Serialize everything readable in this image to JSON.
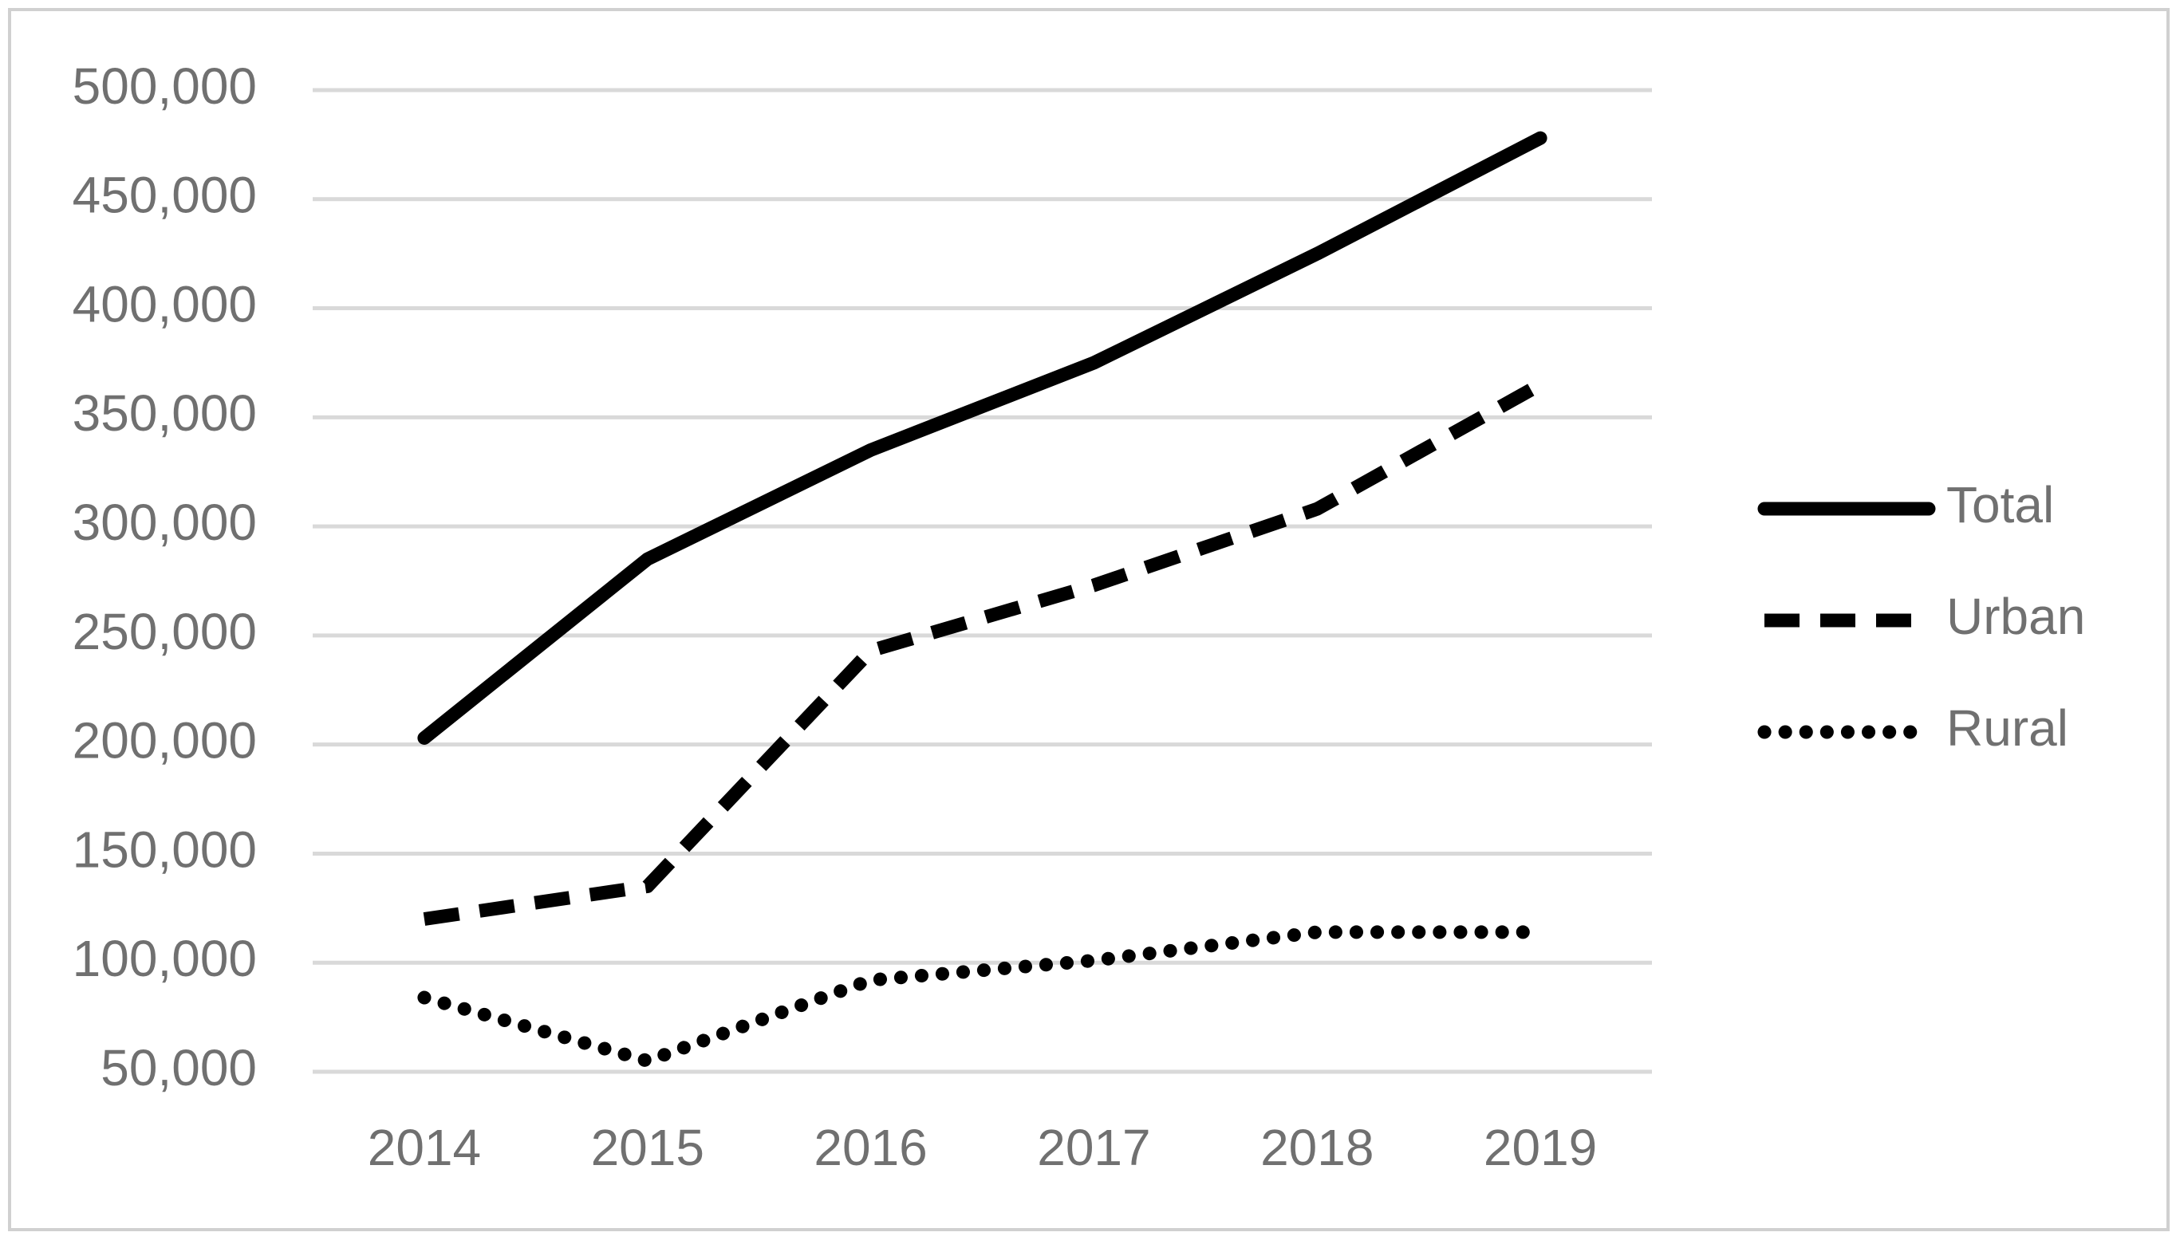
{
  "chart_data": {
    "type": "line",
    "categories": [
      "2014",
      "2015",
      "2016",
      "2017",
      "2018",
      "2019"
    ],
    "series": [
      {
        "name": "Total",
        "color": "#000000",
        "style": "solid",
        "values": [
          203000,
          285000,
          335000,
          375000,
          425000,
          478000
        ]
      },
      {
        "name": "Urban",
        "color": "#000000",
        "style": "dashed",
        "values": [
          120000,
          135000,
          243000,
          273000,
          308000,
          365000
        ]
      },
      {
        "name": "Rural",
        "color": "#000000",
        "style": "dotted",
        "values": [
          84000,
          55000,
          92000,
          101000,
          114000,
          114000
        ]
      }
    ],
    "ylim": [
      50000,
      500000
    ],
    "yticks": [
      {
        "value": 50000,
        "label": "50,000"
      },
      {
        "value": 100000,
        "label": "100,000"
      },
      {
        "value": 150000,
        "label": "150,000"
      },
      {
        "value": 200000,
        "label": "200,000"
      },
      {
        "value": 250000,
        "label": "250,000"
      },
      {
        "value": 300000,
        "label": "300,000"
      },
      {
        "value": 350000,
        "label": "350,000"
      },
      {
        "value": 400000,
        "label": "400,000"
      },
      {
        "value": 450000,
        "label": "450,000"
      },
      {
        "value": 500000,
        "label": "500,000"
      }
    ],
    "grid": true,
    "legend": "right"
  }
}
